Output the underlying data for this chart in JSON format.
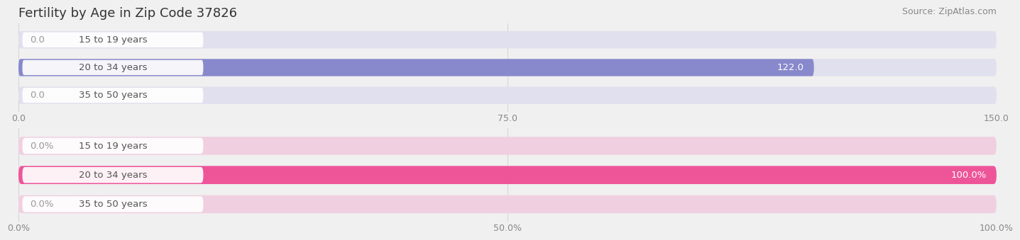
{
  "title": "Fertility by Age in Zip Code 37826",
  "source": "Source: ZipAtlas.com",
  "top_chart": {
    "categories": [
      "15 to 19 years",
      "20 to 34 years",
      "35 to 50 years"
    ],
    "values": [
      0.0,
      122.0,
      0.0
    ],
    "xlim": [
      0,
      150.0
    ],
    "xticks": [
      0.0,
      75.0,
      150.0
    ],
    "bar_color": "#8888cc",
    "bar_bg_color": "#e0e0ee"
  },
  "bottom_chart": {
    "categories": [
      "15 to 19 years",
      "20 to 34 years",
      "35 to 50 years"
    ],
    "values": [
      0.0,
      100.0,
      0.0
    ],
    "xlim": [
      0,
      100.0
    ],
    "xticks": [
      0.0,
      50.0,
      100.0
    ],
    "bar_color": "#ee5599",
    "bar_bg_color": "#f0d0e0"
  },
  "fig_bg_color": "#f0f0f0",
  "bar_bg_color_light_blue": "#e8e8f4",
  "bar_bg_color_light_pink": "#f5e0ec",
  "label_color": "#555555",
  "value_color_inside": "#ffffff",
  "value_color_outside": "#999999",
  "title_fontsize": 13,
  "label_fontsize": 9.5,
  "tick_fontsize": 9,
  "source_fontsize": 9
}
